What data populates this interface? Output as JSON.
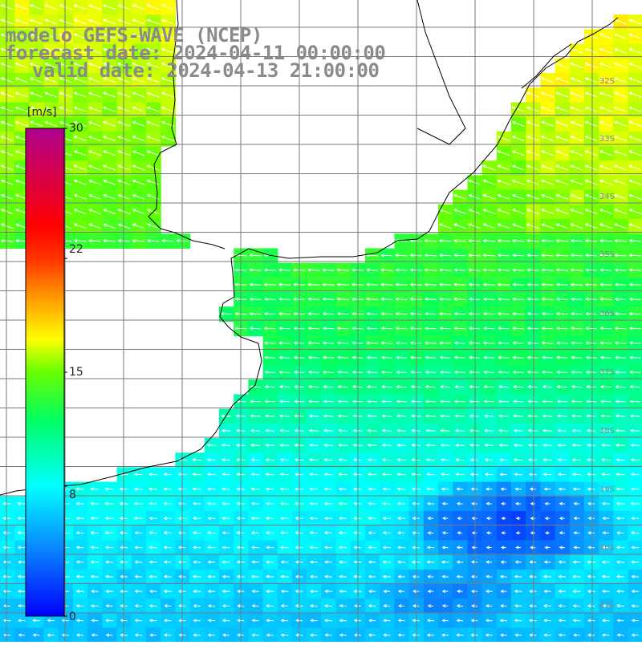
{
  "map": {
    "title_line1": "modelo GEFS-WAVE (NCEP)",
    "title_line2": "forecast date: 2024-04-11 00:00:00",
    "title_line3": "valid date: 2024-04-13 21:00:00",
    "field": "wind speed",
    "grid": true,
    "land_color": "#ffffff",
    "vector_color": "#ffffff",
    "coastline_color": "#000000",
    "grid_color": "#7a7a7a"
  },
  "colorbar": {
    "unit": "[m/s]",
    "min": 0,
    "max": 30,
    "ticks": [
      "30",
      "22",
      "15",
      "8",
      "0"
    ],
    "tick_values": [
      30,
      22,
      15,
      8,
      0
    ],
    "stops": [
      {
        "v": 0,
        "color": "#0000ff"
      },
      {
        "v": 4,
        "color": "#0a80ff"
      },
      {
        "v": 8,
        "color": "#00ffff"
      },
      {
        "v": 12,
        "color": "#00ff66"
      },
      {
        "v": 15,
        "color": "#66ff00"
      },
      {
        "v": 17,
        "color": "#ffff00"
      },
      {
        "v": 20,
        "color": "#ff8800"
      },
      {
        "v": 22,
        "color": "#ff3300"
      },
      {
        "v": 24,
        "color": "#ff0000"
      },
      {
        "v": 30,
        "color": "#b00090"
      }
    ]
  },
  "lat_labels": [
    "32S",
    "33S",
    "34S",
    "35S",
    "36S",
    "37S",
    "38S",
    "39S",
    "40S",
    "41S"
  ]
}
